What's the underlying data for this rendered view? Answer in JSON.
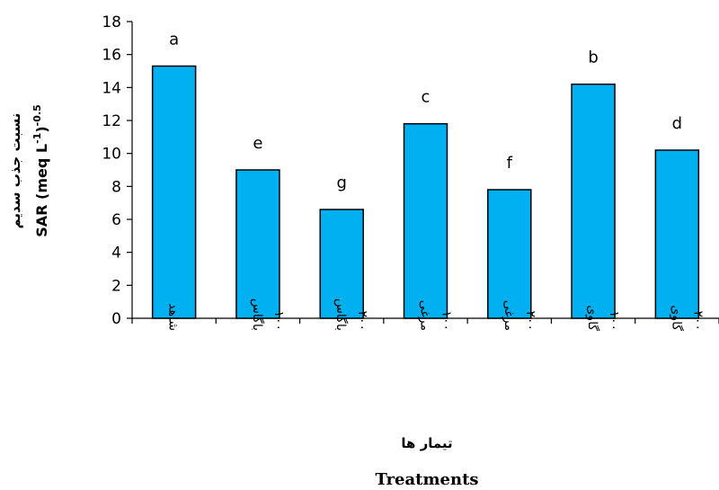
{
  "chart_data": {
    "type": "bar",
    "categories": [
      "شاهد",
      "باگاس ۱۰۰",
      "باگاس ۲۰۰",
      "مرغی ۱۰۰",
      "مرغی ۲۰۰",
      "گاوی ۱۰۰",
      "گاوی ۲۰۰"
    ],
    "category_lines": [
      [
        "شاهد"
      ],
      [
        "باگاس",
        "۱۰۰"
      ],
      [
        "باگاس",
        "۲۰۰"
      ],
      [
        "مرغی",
        "۱۰۰"
      ],
      [
        "مرغی",
        "۲۰۰"
      ],
      [
        "گاوی",
        "۱۰۰"
      ],
      [
        "گاوی",
        "۲۰۰"
      ]
    ],
    "values": [
      15.3,
      9.0,
      6.6,
      11.8,
      7.8,
      14.2,
      10.2
    ],
    "significance_letters": [
      "a",
      "e",
      "g",
      "c",
      "f",
      "b",
      "d"
    ],
    "ylim": [
      0,
      18
    ],
    "yticks": [
      0,
      2,
      4,
      6,
      8,
      10,
      12,
      14,
      16,
      18
    ],
    "ylabel_fa": "نسبت جذب سدیم",
    "ylabel_en": "SAR (meq L",
    "ylabel_en_sup1": "-1",
    "ylabel_en_mid": ")",
    "ylabel_en_sup2": "-0.5",
    "xlabel_fa": "تیمار ها",
    "xlabel_en": "Treatments",
    "bar_color": "#00B0F0",
    "bar_stroke": "#000000",
    "grid": false
  }
}
